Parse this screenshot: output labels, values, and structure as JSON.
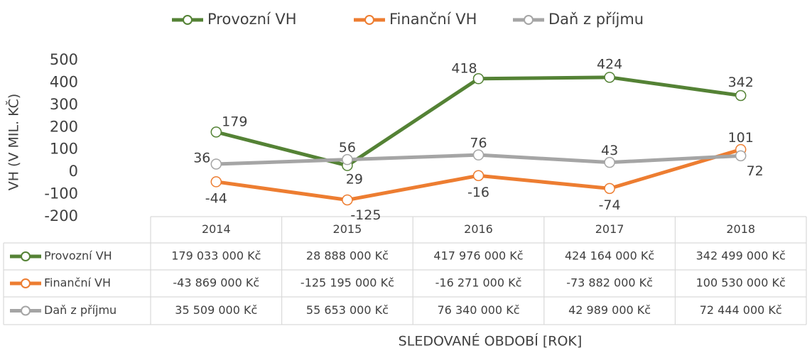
{
  "chart_data": {
    "type": "line",
    "categories": [
      "2014",
      "2015",
      "2016",
      "2017",
      "2018"
    ],
    "series": [
      {
        "name": "Provozní VH",
        "color": "#548235",
        "values": [
          179.033,
          28.888,
          417.976,
          424.164,
          342.499
        ],
        "value_labels": [
          "179",
          "29",
          "418",
          "424",
          "342"
        ]
      },
      {
        "name": "Finanční VH",
        "color": "#ed7d31",
        "values": [
          -43.869,
          -125.195,
          -16.271,
          -73.882,
          100.53
        ],
        "value_labels": [
          "-44",
          "-125",
          "-16",
          "-74",
          "101"
        ]
      },
      {
        "name": "Daň z příjmu",
        "color": "#a5a5a5",
        "values": [
          35.509,
          55.653,
          76.34,
          42.989,
          72.444
        ],
        "value_labels": [
          "36",
          "56",
          "76",
          "43",
          "72"
        ]
      }
    ],
    "table": {
      "rows": [
        [
          "179 033 000 Kč",
          "28 888 000 Kč",
          "417 976 000 Kč",
          "424 164 000 Kč",
          "342 499 000 Kč"
        ],
        [
          "-43 869 000 Kč",
          "-125 195 000 Kč",
          "-16 271 000 Kč",
          "-73 882 000 Kč",
          "100 530 000 Kč"
        ],
        [
          "35 509 000 Kč",
          "55 653 000 Kč",
          "76 340 000 Kč",
          "42 989 000 Kč",
          "72 444 000 Kč"
        ]
      ]
    },
    "ylim": [
      -200,
      500
    ],
    "yticks": [
      -200,
      -100,
      0,
      100,
      200,
      300,
      400,
      500
    ],
    "y_label": "VH (V MIL. KČ)",
    "x_label": "SLEDOVANÉ OBDOBÍ [ROK]",
    "legend": "top",
    "grid": false
  }
}
